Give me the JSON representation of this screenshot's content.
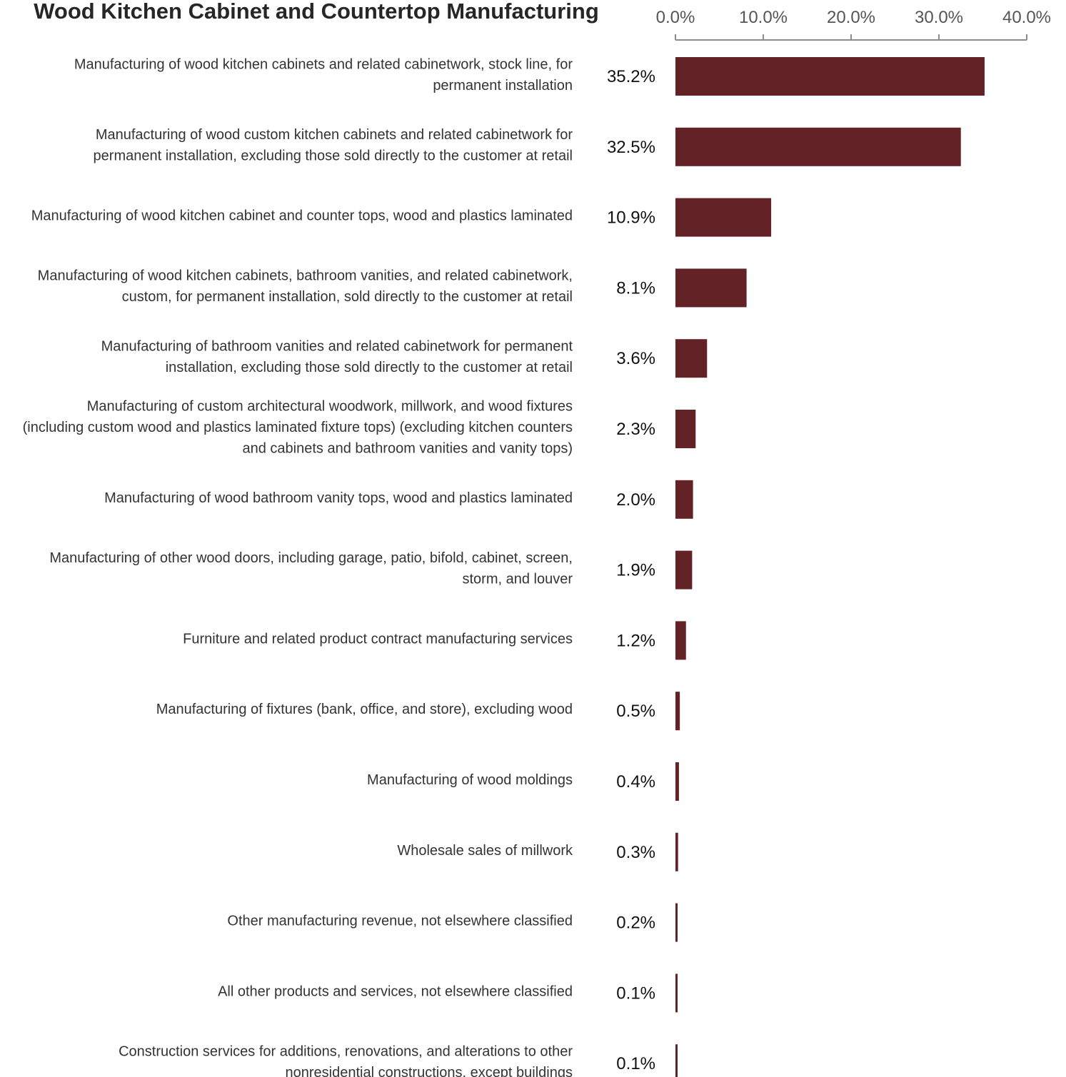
{
  "chart_data": {
    "type": "bar",
    "orientation": "horizontal",
    "title": "Wood Kitchen Cabinet and Countertop Manufacturing",
    "xaxis_position": "top",
    "xlim": [
      0,
      40
    ],
    "xticks": [
      0,
      10,
      20,
      30,
      40
    ],
    "xtick_labels": [
      "0.0%",
      "10.0%",
      "20.0%",
      "30.0%",
      "40.0%"
    ],
    "grid": false,
    "bar_color": "#632326",
    "categories": [
      [
        "Manufacturing of wood kitchen cabinets and related cabinetwork, stock line, for",
        "permanent installation"
      ],
      [
        "Manufacturing of wood custom kitchen cabinets and related cabinetwork for",
        "permanent installation, excluding those sold directly to the customer at retail"
      ],
      [
        "Manufacturing of wood kitchen cabinet and counter tops, wood and plastics laminated"
      ],
      [
        "Manufacturing of wood kitchen cabinets, bathroom vanities, and related cabinetwork,",
        "custom, for permanent installation, sold directly to the customer at retail"
      ],
      [
        "Manufacturing of bathroom vanities and related cabinetwork for permanent",
        "installation, excluding those sold directly to the customer at retail"
      ],
      [
        "Manufacturing of custom architectural woodwork, millwork, and wood fixtures",
        "(including custom wood and plastics laminated fixture tops) (excluding kitchen counters",
        "and cabinets and bathroom vanities and vanity tops)"
      ],
      [
        "Manufacturing of wood bathroom vanity tops, wood and plastics laminated"
      ],
      [
        "Manufacturing of other wood doors, including garage, patio, bifold, cabinet, screen,",
        "storm, and louver"
      ],
      [
        "Furniture and related product contract manufacturing services"
      ],
      [
        "Manufacturing of fixtures (bank, office, and store), excluding wood"
      ],
      [
        "Manufacturing of wood moldings"
      ],
      [
        "Wholesale sales of millwork"
      ],
      [
        "Other manufacturing revenue, not elsewhere classified"
      ],
      [
        "All other products and services, not elsewhere classified"
      ],
      [
        "Construction services for additions, renovations, and alterations to other",
        "nonresidential constructions, except buildings"
      ]
    ],
    "values": [
      35.2,
      32.5,
      10.9,
      8.1,
      3.6,
      2.3,
      2.0,
      1.9,
      1.2,
      0.5,
      0.4,
      0.3,
      0.2,
      0.1,
      0.1
    ],
    "value_labels": [
      "35.2%",
      "32.5%",
      "10.9%",
      "8.1%",
      "3.6%",
      "2.3%",
      "2.0%",
      "1.9%",
      "1.2%",
      "0.5%",
      "0.4%",
      "0.3%",
      "0.2%",
      "0.1%",
      "0.1%"
    ]
  }
}
